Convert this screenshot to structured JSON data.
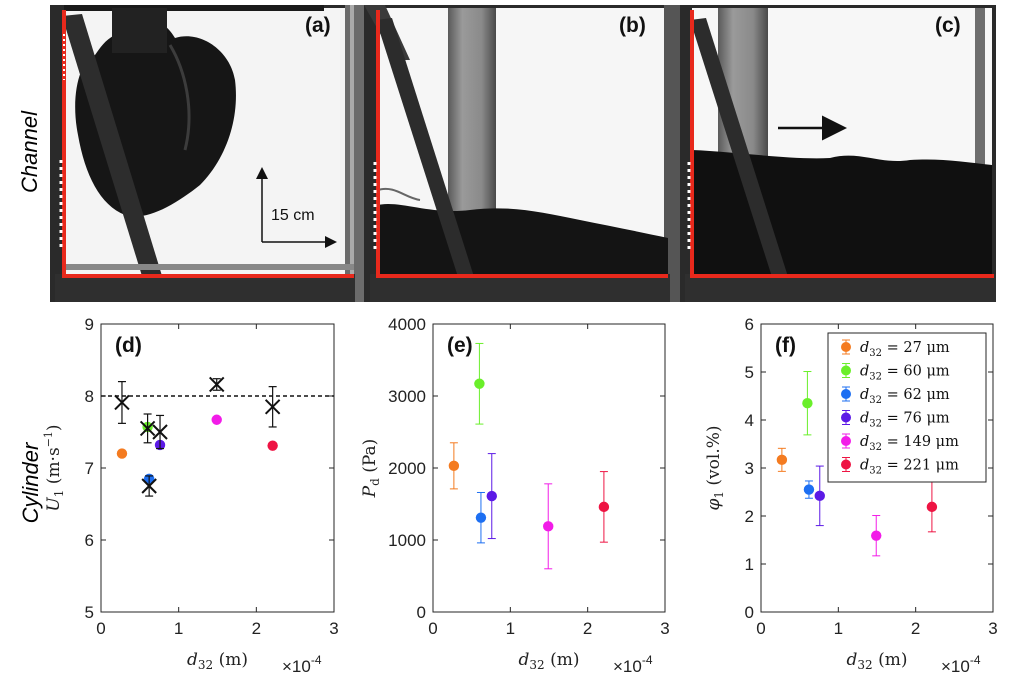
{
  "row_labels": {
    "top": "Channel",
    "bottom": "Cylinder"
  },
  "photos": [
    {
      "label": "(a)",
      "scale_text": "15 cm"
    },
    {
      "label": "(b)"
    },
    {
      "label": "(c)"
    }
  ],
  "colors": {
    "d27": "#f47b20",
    "d60": "#6aef2a",
    "d62": "#1d6ff2",
    "d76": "#5c1ae6",
    "d149": "#f21ce8",
    "d221": "#ee1443",
    "frame_red": "#e8291c"
  },
  "chart_data": [
    {
      "type": "scatter",
      "panel_label": "(d)",
      "xlabel_var": "d",
      "xlabel_sub": "32",
      "xlabel_unit": "(m)",
      "xscale_text": "×10",
      "xscale_exp": "-4",
      "ylabel_var": "U",
      "ylabel_sub": "1",
      "ylabel_unit": "(m·s",
      "ylabel_exp": "−1",
      "ylabel_close": ")",
      "xlim": [
        0,
        3
      ],
      "ylim": [
        5,
        9
      ],
      "xticks": [
        "0",
        "1",
        "2",
        "3"
      ],
      "yticks": [
        "5",
        "6",
        "7",
        "8",
        "9"
      ],
      "reference_line_y": 8.0,
      "series": [
        {
          "color_key": "d27",
          "x": 0.27,
          "y": 7.2
        },
        {
          "color_key": "d60",
          "x": 0.6,
          "y": 7.57
        },
        {
          "color_key": "d62",
          "x": 0.62,
          "y": 6.85
        },
        {
          "color_key": "d76",
          "x": 0.76,
          "y": 7.32
        },
        {
          "color_key": "d149",
          "x": 1.49,
          "y": 7.67
        },
        {
          "color_key": "d221",
          "x": 2.21,
          "y": 7.31
        }
      ],
      "cross_markers": [
        {
          "x": 0.27,
          "y": 7.91,
          "err": 0.29
        },
        {
          "x": 0.6,
          "y": 7.55,
          "err": 0.2
        },
        {
          "x": 0.62,
          "y": 6.75,
          "err": 0.14
        },
        {
          "x": 0.76,
          "y": 7.5,
          "err": 0.23
        },
        {
          "x": 1.49,
          "y": 8.16,
          "err": 0.08
        },
        {
          "x": 2.21,
          "y": 7.85,
          "err": 0.28
        }
      ]
    },
    {
      "type": "scatter",
      "panel_label": "(e)",
      "xlabel_var": "d",
      "xlabel_sub": "32",
      "xlabel_unit": "(m)",
      "xscale_text": "×10",
      "xscale_exp": "-4",
      "ylabel_var": "P",
      "ylabel_sub": "d",
      "ylabel_unit": "(Pa)",
      "xlim": [
        0,
        3
      ],
      "ylim": [
        0,
        4000
      ],
      "xticks": [
        "0",
        "1",
        "2",
        "3"
      ],
      "yticks": [
        "0",
        "1000",
        "2000",
        "3000",
        "4000"
      ],
      "series": [
        {
          "color_key": "d27",
          "x": 0.27,
          "y": 2030,
          "err": 320
        },
        {
          "color_key": "d60",
          "x": 0.6,
          "y": 3170,
          "err": 560
        },
        {
          "color_key": "d62",
          "x": 0.62,
          "y": 1310,
          "err": 350
        },
        {
          "color_key": "d76",
          "x": 0.76,
          "y": 1610,
          "err": 590
        },
        {
          "color_key": "d149",
          "x": 1.49,
          "y": 1190,
          "err": 590
        },
        {
          "color_key": "d221",
          "x": 2.21,
          "y": 1460,
          "err": 490
        }
      ]
    },
    {
      "type": "scatter",
      "panel_label": "(f)",
      "xlabel_var": "d",
      "xlabel_sub": "32",
      "xlabel_unit": "(m)",
      "xscale_text": "×10",
      "xscale_exp": "-4",
      "ylabel_var": "φ",
      "ylabel_sub": "1",
      "ylabel_unit": "(vol.%)",
      "xlim": [
        0,
        3
      ],
      "ylim": [
        0,
        6
      ],
      "xticks": [
        "0",
        "1",
        "2",
        "3"
      ],
      "yticks": [
        "0",
        "1",
        "2",
        "3",
        "4",
        "5",
        "6"
      ],
      "series": [
        {
          "color_key": "d27",
          "x": 0.27,
          "y": 3.17,
          "err": 0.24,
          "legend": "d",
          "legend_sub": "32",
          "legend_val": " = 27 μm"
        },
        {
          "color_key": "d60",
          "x": 0.6,
          "y": 4.35,
          "err": 0.66,
          "legend": "d",
          "legend_sub": "32",
          "legend_val": " = 60 μm"
        },
        {
          "color_key": "d62",
          "x": 0.62,
          "y": 2.55,
          "err": 0.18,
          "legend": "d",
          "legend_sub": "32",
          "legend_val": " = 62 μm"
        },
        {
          "color_key": "d76",
          "x": 0.76,
          "y": 2.42,
          "err": 0.62,
          "legend": "d",
          "legend_sub": "32",
          "legend_val": " = 76 μm"
        },
        {
          "color_key": "d149",
          "x": 1.49,
          "y": 1.59,
          "err": 0.42,
          "legend": "d",
          "legend_sub": "32",
          "legend_val": " = 149 μm"
        },
        {
          "color_key": "d221",
          "x": 2.21,
          "y": 2.19,
          "err": 0.52,
          "legend": "d",
          "legend_sub": "32",
          "legend_val": " = 221 μm"
        }
      ]
    }
  ]
}
